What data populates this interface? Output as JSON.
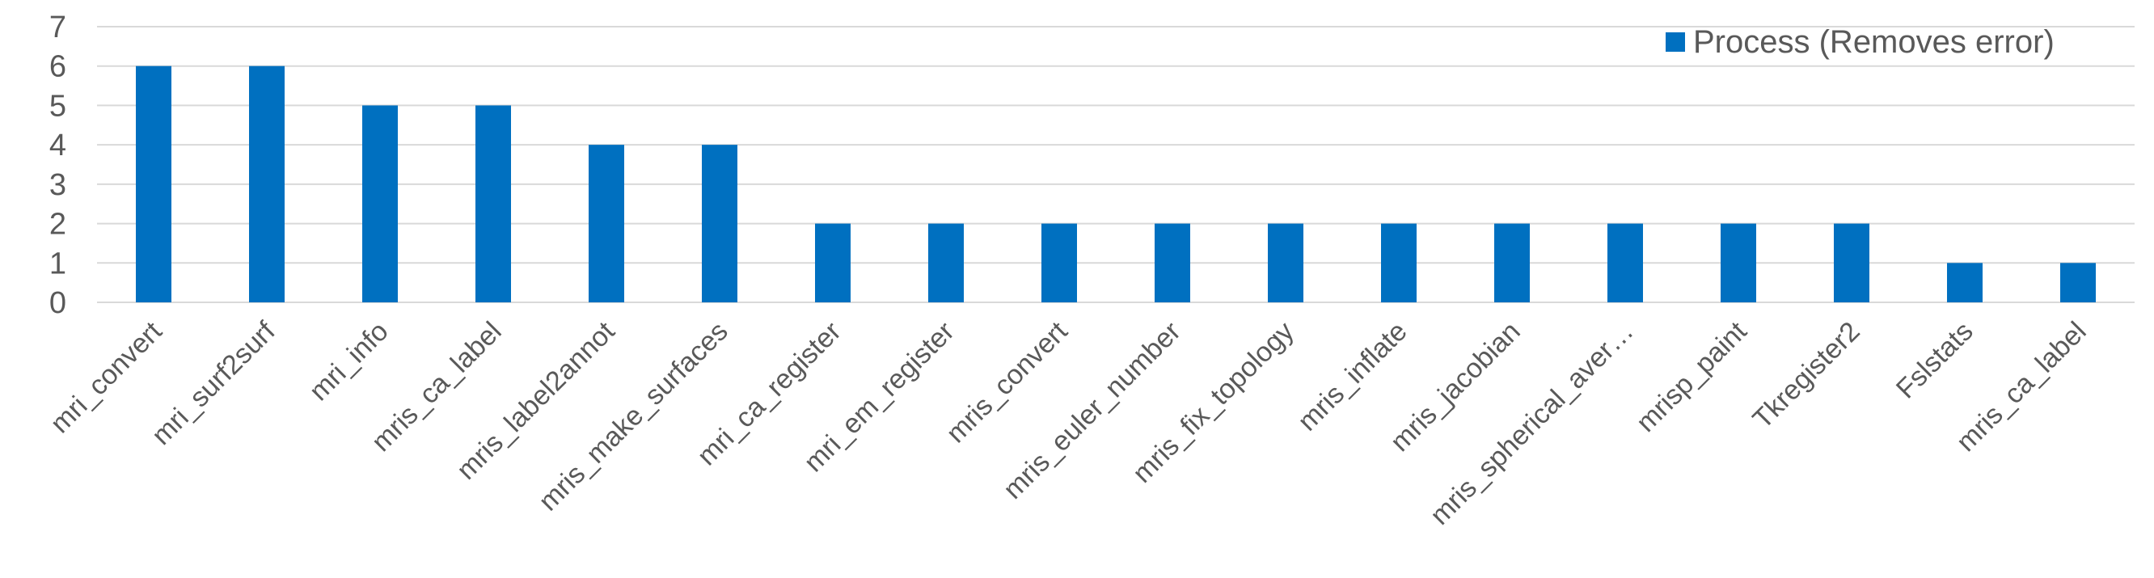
{
  "chart_data": {
    "type": "bar",
    "categories": [
      "mri_convert",
      "mri_surf2surf",
      "mri_info",
      "mris_ca_label",
      "mris_label2annot",
      "mris_make_surfaces",
      "mri_ca_register",
      "mri_em_register",
      "mris_convert",
      "mris_euler_number",
      "mris_fix_topology",
      "mris_inflate",
      "mris_jacobian",
      "mris_spherical_aver…",
      "mrisp_paint",
      "Tkregister2",
      "Fslstats",
      "mris_ca_label"
    ],
    "series": [
      {
        "name": "Process (Removes error)",
        "values": [
          6,
          6,
          5,
          5,
          4,
          4,
          2,
          2,
          2,
          2,
          2,
          2,
          2,
          2,
          2,
          2,
          1,
          1
        ],
        "color": "#0070C0"
      }
    ],
    "yticks": [
      "0",
      "1",
      "2",
      "3",
      "4",
      "5",
      "6",
      "7"
    ],
    "ylim": [
      0,
      7
    ],
    "grid": true,
    "legend_position": "top-right"
  }
}
